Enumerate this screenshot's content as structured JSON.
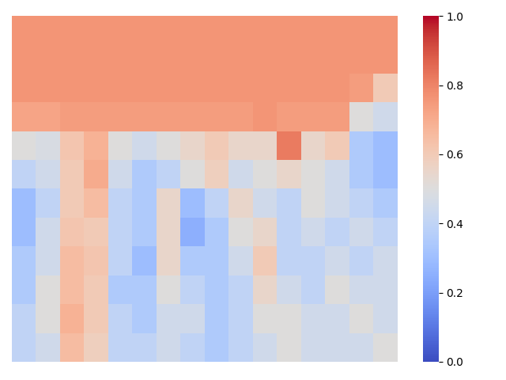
{
  "chart_data": {
    "type": "heatmap",
    "color": "coolwarm",
    "tick_labels": false,
    "cells": [
      [
        0.76,
        0.76,
        0.76,
        0.76,
        0.76,
        0.76,
        0.76,
        0.76,
        0.76,
        0.76,
        0.76,
        0.76,
        0.76,
        0.76,
        0.76,
        0.76
      ],
      [
        0.76,
        0.76,
        0.76,
        0.76,
        0.76,
        0.76,
        0.76,
        0.76,
        0.76,
        0.76,
        0.76,
        0.76,
        0.76,
        0.76,
        0.76,
        0.76
      ],
      [
        0.76,
        0.76,
        0.76,
        0.76,
        0.76,
        0.76,
        0.76,
        0.76,
        0.76,
        0.76,
        0.76,
        0.76,
        0.76,
        0.76,
        0.74,
        0.6
      ],
      [
        0.72,
        0.72,
        0.74,
        0.74,
        0.74,
        0.74,
        0.74,
        0.74,
        0.74,
        0.74,
        0.76,
        0.74,
        0.74,
        0.74,
        0.5,
        0.45
      ],
      [
        0.5,
        0.48,
        0.62,
        0.68,
        0.5,
        0.45,
        0.5,
        0.55,
        0.6,
        0.55,
        0.55,
        0.82,
        0.55,
        0.6,
        0.35,
        0.3
      ],
      [
        0.4,
        0.45,
        0.6,
        0.7,
        0.45,
        0.35,
        0.4,
        0.5,
        0.58,
        0.45,
        0.5,
        0.55,
        0.5,
        0.45,
        0.35,
        0.3
      ],
      [
        0.3,
        0.4,
        0.6,
        0.65,
        0.4,
        0.35,
        0.55,
        0.3,
        0.4,
        0.55,
        0.45,
        0.4,
        0.5,
        0.45,
        0.4,
        0.35
      ],
      [
        0.3,
        0.45,
        0.62,
        0.6,
        0.4,
        0.35,
        0.55,
        0.25,
        0.35,
        0.5,
        0.55,
        0.4,
        0.45,
        0.4,
        0.45,
        0.4
      ],
      [
        0.35,
        0.45,
        0.65,
        0.62,
        0.4,
        0.3,
        0.55,
        0.35,
        0.35,
        0.45,
        0.6,
        0.4,
        0.4,
        0.45,
        0.4,
        0.45
      ],
      [
        0.35,
        0.5,
        0.65,
        0.6,
        0.35,
        0.35,
        0.5,
        0.4,
        0.35,
        0.4,
        0.55,
        0.45,
        0.4,
        0.5,
        0.45,
        0.45
      ],
      [
        0.4,
        0.5,
        0.68,
        0.6,
        0.4,
        0.35,
        0.45,
        0.45,
        0.35,
        0.4,
        0.5,
        0.5,
        0.45,
        0.45,
        0.5,
        0.45
      ],
      [
        0.4,
        0.45,
        0.65,
        0.58,
        0.4,
        0.4,
        0.45,
        0.4,
        0.35,
        0.4,
        0.45,
        0.5,
        0.45,
        0.45,
        0.45,
        0.5
      ]
    ],
    "colorbar_range": [
      0,
      1
    ],
    "colorbar_ticks": [
      {
        "value": 0,
        "label": "0.0"
      },
      {
        "value": 0.2,
        "label": "0.2"
      },
      {
        "value": 0.4,
        "label": "0.4"
      },
      {
        "value": 0.6,
        "label": "0.6"
      },
      {
        "value": 0.8,
        "label": "0.8"
      },
      {
        "value": 1,
        "label": "1.0"
      }
    ]
  }
}
